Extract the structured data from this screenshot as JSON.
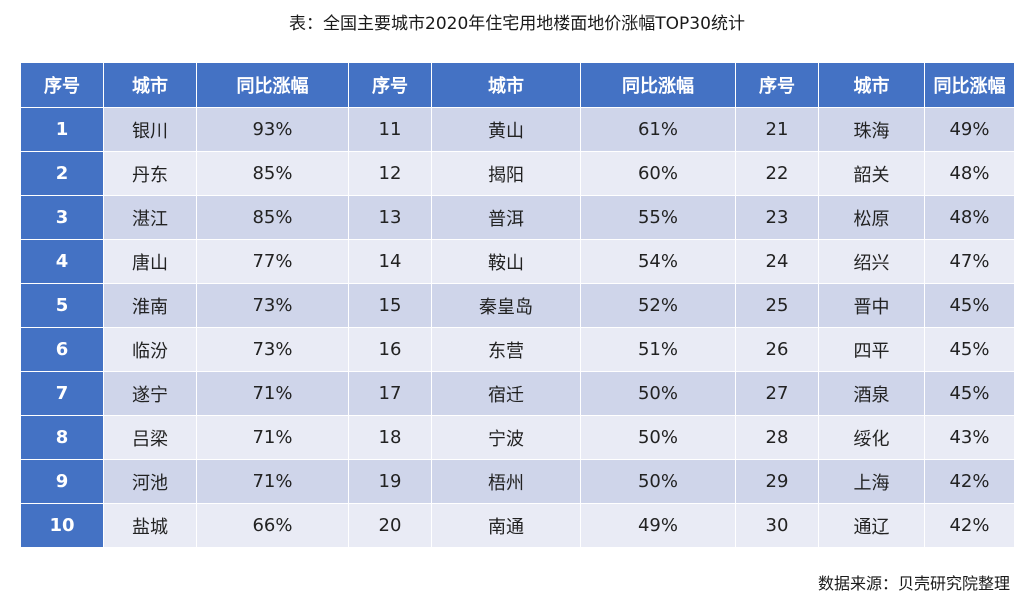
{
  "title": "表：全国主要城市2020年住宅用地楼面地价涨幅TOP30统计",
  "headers": [
    "序号",
    "城市",
    "同比涨幅",
    "序号",
    "城市",
    "同比涨幅",
    "序号",
    "城市",
    "同比涨幅"
  ],
  "rows": [
    [
      "1",
      "银川",
      "93%",
      "11",
      "黄山",
      "61%",
      "21",
      "珠海",
      "49%"
    ],
    [
      "2",
      "丹东",
      "85%",
      "12",
      "揭阳",
      "60%",
      "22",
      "韶关",
      "48%"
    ],
    [
      "3",
      "湛江",
      "85%",
      "13",
      "普洱",
      "55%",
      "23",
      "松原",
      "48%"
    ],
    [
      "4",
      "唐山",
      "77%",
      "14",
      "鞍山",
      "54%",
      "24",
      "绍兴",
      "47%"
    ],
    [
      "5",
      "淮南",
      "73%",
      "15",
      "秦皇岛",
      "52%",
      "25",
      "晋中",
      "45%"
    ],
    [
      "6",
      "临汾",
      "73%",
      "16",
      "东营",
      "51%",
      "26",
      "四平",
      "45%"
    ],
    [
      "7",
      "遂宁",
      "71%",
      "17",
      "宿迁",
      "50%",
      "27",
      "酒泉",
      "45%"
    ],
    [
      "8",
      "吕梁",
      "71%",
      "18",
      "宁波",
      "50%",
      "28",
      "绥化",
      "43%"
    ],
    [
      "9",
      "河池",
      "71%",
      "19",
      "梧州",
      "50%",
      "29",
      "上海",
      "42%"
    ],
    [
      "10",
      "盐城",
      "66%",
      "20",
      "南通",
      "49%",
      "30",
      "通辽",
      "42%"
    ]
  ],
  "source": "数据来源：贝壳研究院整理",
  "colors": {
    "header_bg": "#4472c4",
    "row_odd_bg": "#cfd5ea",
    "row_even_bg": "#e9ebf5"
  }
}
